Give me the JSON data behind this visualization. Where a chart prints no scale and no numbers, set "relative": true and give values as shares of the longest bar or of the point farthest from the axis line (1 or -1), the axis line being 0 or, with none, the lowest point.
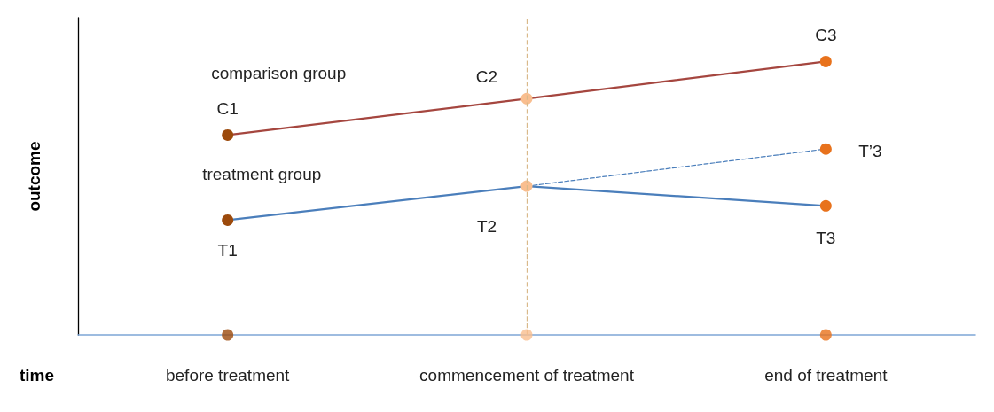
{
  "chart_data": {
    "type": "line",
    "relative": true,
    "xlabel": "time",
    "ylabel": "outcome",
    "categories": [
      "before treatment",
      "commencement of treatment",
      "end of treatment"
    ],
    "series": [
      {
        "name": "comparison group",
        "color": "#a5463f",
        "colors": [
          "#9c4a0c",
          "#f9be8f",
          "#e8721c"
        ],
        "values": [
          0.731,
          0.864,
          1
        ]
      },
      {
        "name": "treatment group",
        "color": "#4a7ebb",
        "colors": [
          "#9c4a0c",
          "#f9be8f",
          "#e8721c"
        ],
        "values": [
          0.42,
          0.544,
          0.472
        ]
      },
      {
        "color": "#4a7ebb",
        "line_style": "dashed",
        "colors": [
          null,
          null,
          "#e8721c"
        ],
        "values": [
          null,
          0.544,
          0.68
        ]
      },
      {
        "type": "scatter",
        "color": "#9c4a0c",
        "colors": [
          "#9c4a0c",
          "#f9be8f",
          "#e8721c"
        ],
        "values": [
          0,
          0,
          0
        ]
      }
    ],
    "ref_lines": [
      {
        "axis": "x",
        "value": "commencement of treatment",
        "color": "#d9b98a",
        "line_style": "dashed"
      }
    ],
    "annotations": [
      {
        "text": "C1",
        "x": "before treatment",
        "y": 0.731
      },
      {
        "text": "C2",
        "x": "commencement of treatment",
        "y": 0.864
      },
      {
        "text": "C3",
        "x": "end of treatment",
        "y": 1
      },
      {
        "text": "T1",
        "x": "before treatment",
        "y": 0.42
      },
      {
        "text": "T2",
        "x": "commencement of treatment",
        "y": 0.544
      },
      {
        "text": "T3",
        "x": "end of treatment",
        "y": 0.472
      },
      {
        "text": "T’3",
        "x": "end of treatment",
        "y": 0.68
      }
    ],
    "marker": "circle",
    "line_style": "solid",
    "grid": false,
    "legend": false
  }
}
